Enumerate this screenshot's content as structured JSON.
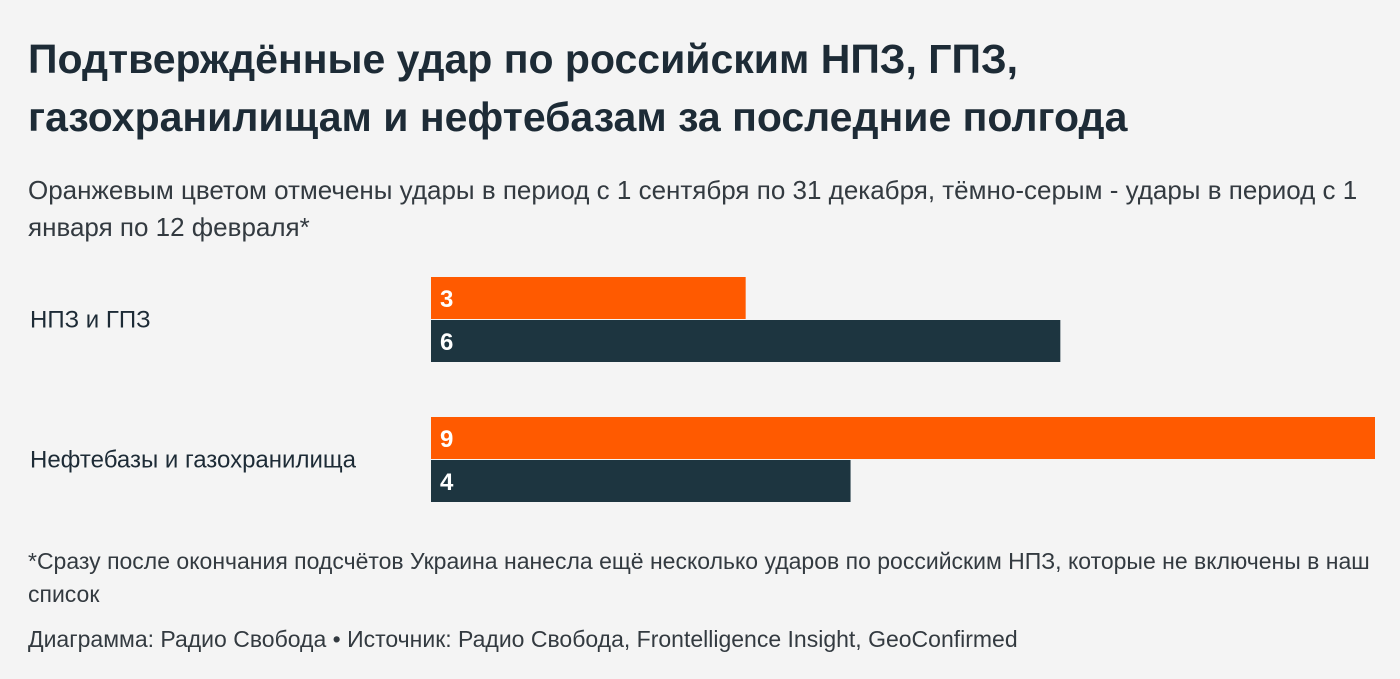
{
  "header": {
    "title": "Подтверждённые удар по российским НПЗ, ГПЗ, газохранилищам и нефтебазам за последние полгода",
    "subtitle": "Оранжевым цветом отмечены удары в период с 1 сентября по 31 декабря, тёмно-серым - удары в период с 1 января по 12 февраля*"
  },
  "footer": {
    "footnote": "*Сразу после окончания подсчётов Украина нанесла ещё несколько ударов по российским НПЗ, которые не включены в наш список",
    "source": "Диаграмма: Радио Свобода • Источник: Радио Свобода, Frontelligence Insight, GeoConfirmed"
  },
  "chart_data": {
    "type": "bar",
    "orientation": "horizontal",
    "categories": [
      "НПЗ и ГПЗ",
      "Нефтебазы и газохранилища"
    ],
    "series": [
      {
        "values": [
          3,
          9
        ],
        "color": "#ff5a00"
      },
      {
        "values": [
          6,
          4
        ],
        "color": "#1d3540"
      }
    ],
    "xlim": [
      0,
      9
    ],
    "grid": false,
    "legend": "none",
    "data_labels": true
  }
}
